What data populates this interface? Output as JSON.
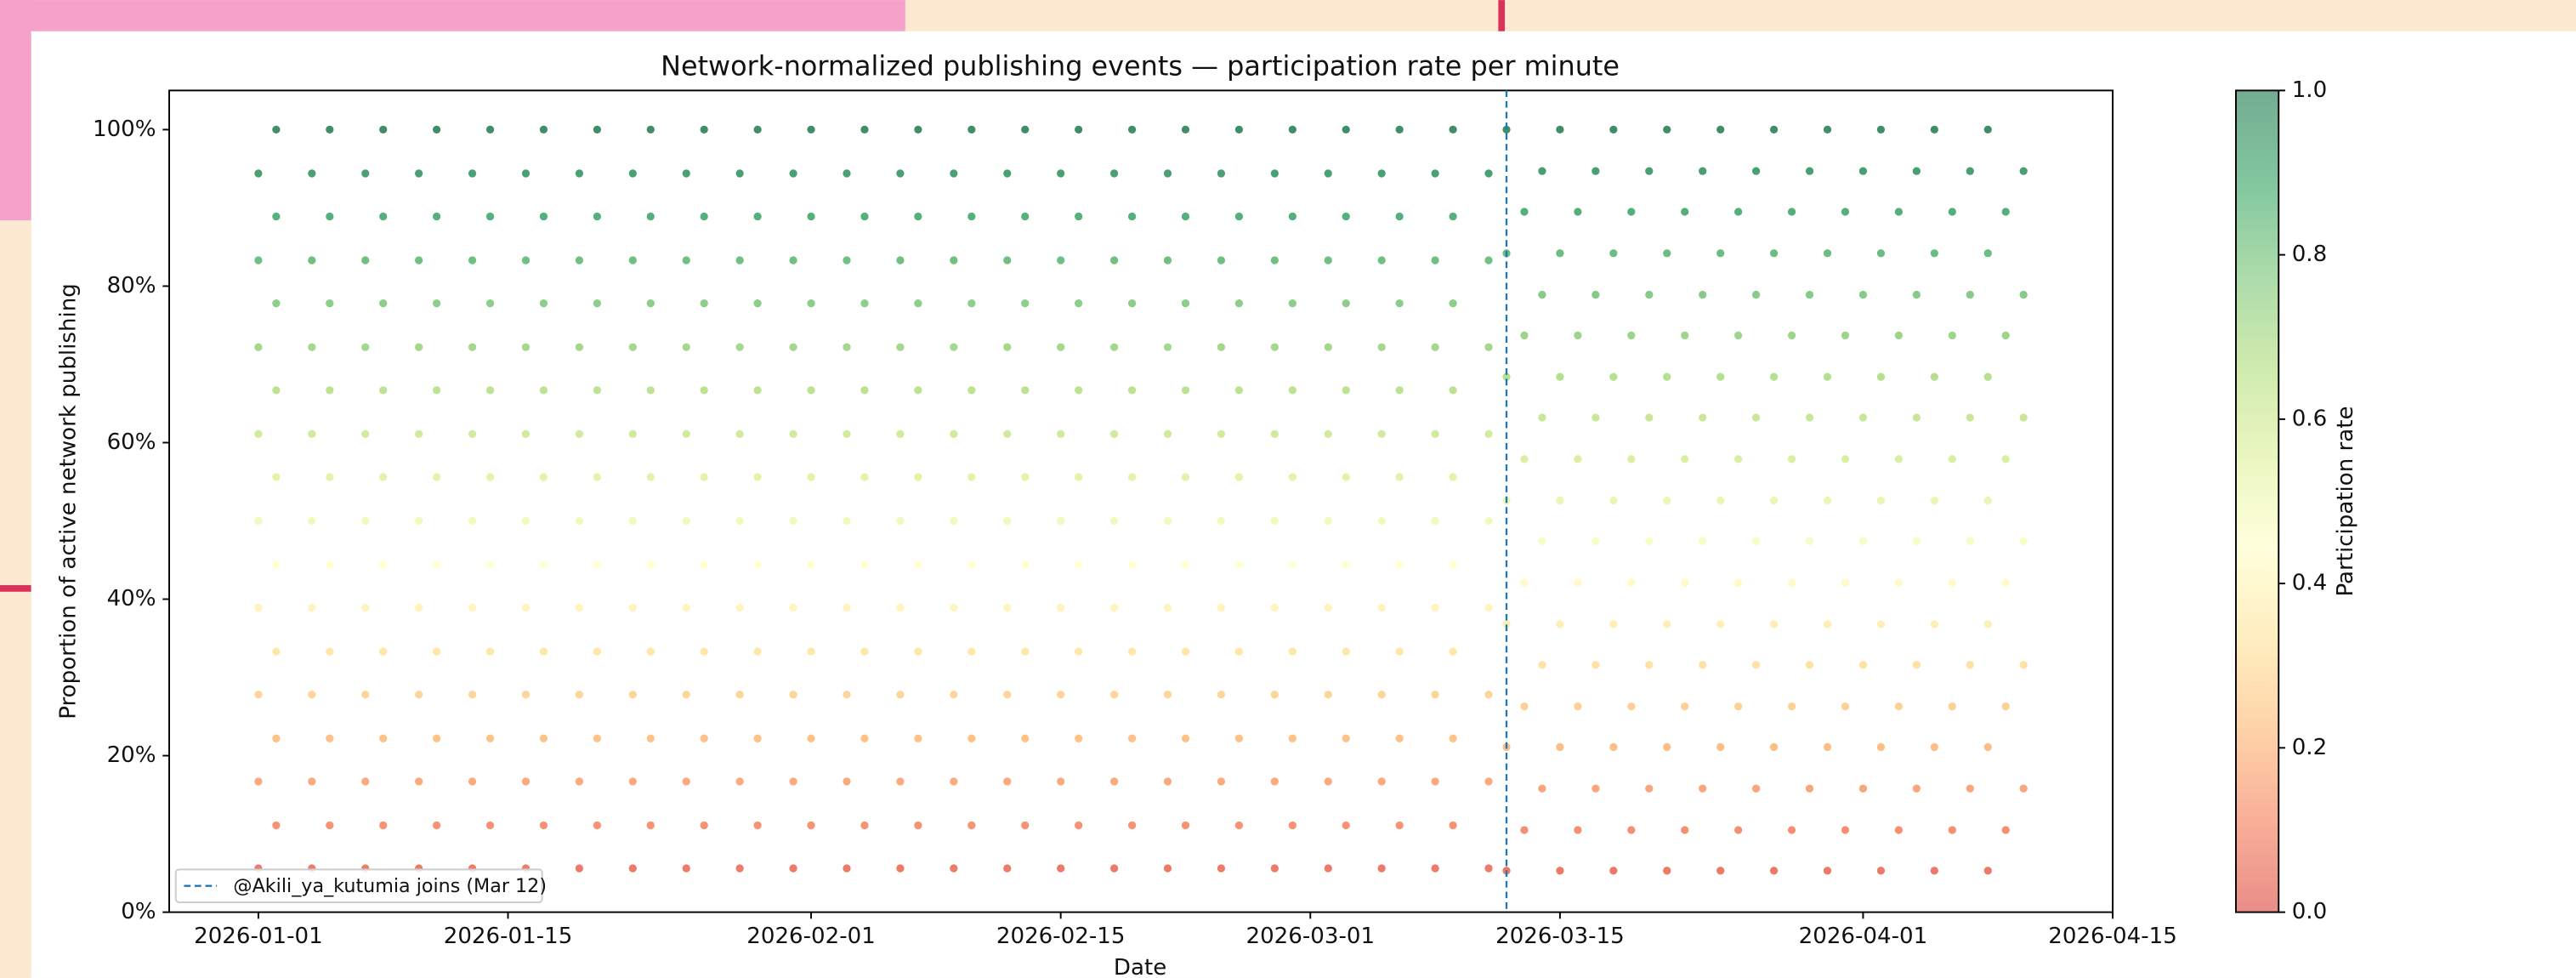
{
  "chart_data": {
    "type": "scatter",
    "title": "Network-normalized publishing events — participation rate per minute",
    "xlabel": "Date",
    "ylabel": "Proportion of active network publishing",
    "xlim": [
      "2025-12-27",
      "2026-04-15"
    ],
    "xticks": [
      "2026-01-01",
      "2026-01-15",
      "2026-02-01",
      "2026-02-15",
      "2026-03-01",
      "2026-03-15",
      "2026-04-01",
      "2026-04-15"
    ],
    "ylim": [
      0,
      1.05
    ],
    "yticks": [
      {
        "value": 0,
        "label": "0%"
      },
      {
        "value": 0.2,
        "label": "20%"
      },
      {
        "value": 0.4,
        "label": "40%"
      },
      {
        "value": 0.6,
        "label": "60%"
      },
      {
        "value": 0.8,
        "label": "80%"
      },
      {
        "value": 1,
        "label": "100%"
      }
    ],
    "colormap": [
      "#d73027",
      "#f46d43",
      "#fdae61",
      "#fee08b",
      "#ffffbf",
      "#d9ef8b",
      "#a6d96a",
      "#66bd63",
      "#1a9850",
      "#006837"
    ],
    "clim": [
      0,
      1
    ],
    "colorbar": {
      "label": "Participation rate",
      "ticks": [
        {
          "value": 0,
          "label": "0.0"
        },
        0.2,
        0.4,
        0.6,
        0.8,
        {
          "value": 1,
          "label": "1.0"
        }
      ]
    },
    "vline": {
      "x": "2026-03-12",
      "label": "@Akili_ya_kutumia joins (Mar 12)",
      "color": "#1f77b4"
    },
    "legend": "lower left",
    "rows": [
      {
        "y": 0.056,
        "x": [
          "2026-01-01",
          "2026-01-04",
          "2026-01-07",
          "2026-01-10",
          "2026-01-13",
          "2026-01-16",
          "2026-01-19",
          "2026-01-22",
          "2026-01-25",
          "2026-01-28",
          "2026-01-31",
          "2026-02-03",
          "2026-02-06",
          "2026-02-09",
          "2026-02-12",
          "2026-02-15",
          "2026-02-18",
          "2026-02-21",
          "2026-02-24",
          "2026-02-27",
          "2026-03-02",
          "2026-03-05",
          "2026-03-08",
          "2026-03-11"
        ]
      },
      {
        "y": 0.111,
        "x": [
          "2026-01-02",
          "2026-01-05",
          "2026-01-08",
          "2026-01-11",
          "2026-01-14",
          "2026-01-17",
          "2026-01-20",
          "2026-01-23",
          "2026-01-26",
          "2026-01-29",
          "2026-02-01",
          "2026-02-04",
          "2026-02-07",
          "2026-02-10",
          "2026-02-13",
          "2026-02-16",
          "2026-02-19",
          "2026-02-22",
          "2026-02-25",
          "2026-02-28",
          "2026-03-03",
          "2026-03-06",
          "2026-03-09"
        ]
      },
      {
        "y": 0.167,
        "x": [
          "2026-01-01",
          "2026-01-04",
          "2026-01-07",
          "2026-01-10",
          "2026-01-13",
          "2026-01-16",
          "2026-01-19",
          "2026-01-22",
          "2026-01-25",
          "2026-01-28",
          "2026-01-31",
          "2026-02-03",
          "2026-02-06",
          "2026-02-09",
          "2026-02-12",
          "2026-02-15",
          "2026-02-18",
          "2026-02-21",
          "2026-02-24",
          "2026-02-27",
          "2026-03-02",
          "2026-03-05",
          "2026-03-08",
          "2026-03-11"
        ]
      },
      {
        "y": 0.222,
        "x": [
          "2026-01-02",
          "2026-01-05",
          "2026-01-08",
          "2026-01-11",
          "2026-01-14",
          "2026-01-17",
          "2026-01-20",
          "2026-01-23",
          "2026-01-26",
          "2026-01-29",
          "2026-02-01",
          "2026-02-04",
          "2026-02-07",
          "2026-02-10",
          "2026-02-13",
          "2026-02-16",
          "2026-02-19",
          "2026-02-22",
          "2026-02-25",
          "2026-02-28",
          "2026-03-03",
          "2026-03-06",
          "2026-03-09"
        ]
      },
      {
        "y": 0.278,
        "x": [
          "2026-01-01",
          "2026-01-04",
          "2026-01-07",
          "2026-01-10",
          "2026-01-13",
          "2026-01-16",
          "2026-01-19",
          "2026-01-22",
          "2026-01-25",
          "2026-01-28",
          "2026-01-31",
          "2026-02-03",
          "2026-02-06",
          "2026-02-09",
          "2026-02-12",
          "2026-02-15",
          "2026-02-18",
          "2026-02-21",
          "2026-02-24",
          "2026-02-27",
          "2026-03-02",
          "2026-03-05",
          "2026-03-08",
          "2026-03-11"
        ]
      },
      {
        "y": 0.333,
        "x": [
          "2026-01-02",
          "2026-01-05",
          "2026-01-08",
          "2026-01-11",
          "2026-01-14",
          "2026-01-17",
          "2026-01-20",
          "2026-01-23",
          "2026-01-26",
          "2026-01-29",
          "2026-02-01",
          "2026-02-04",
          "2026-02-07",
          "2026-02-10",
          "2026-02-13",
          "2026-02-16",
          "2026-02-19",
          "2026-02-22",
          "2026-02-25",
          "2026-02-28",
          "2026-03-03",
          "2026-03-06",
          "2026-03-09"
        ]
      },
      {
        "y": 0.389,
        "x": [
          "2026-01-01",
          "2026-01-04",
          "2026-01-07",
          "2026-01-10",
          "2026-01-13",
          "2026-01-16",
          "2026-01-19",
          "2026-01-22",
          "2026-01-25",
          "2026-01-28",
          "2026-01-31",
          "2026-02-03",
          "2026-02-06",
          "2026-02-09",
          "2026-02-12",
          "2026-02-15",
          "2026-02-18",
          "2026-02-21",
          "2026-02-24",
          "2026-02-27",
          "2026-03-02",
          "2026-03-05",
          "2026-03-08",
          "2026-03-11"
        ]
      },
      {
        "y": 0.444,
        "x": [
          "2026-01-02",
          "2026-01-05",
          "2026-01-08",
          "2026-01-11",
          "2026-01-14",
          "2026-01-17",
          "2026-01-20",
          "2026-01-23",
          "2026-01-26",
          "2026-01-29",
          "2026-02-01",
          "2026-02-04",
          "2026-02-07",
          "2026-02-10",
          "2026-02-13",
          "2026-02-16",
          "2026-02-19",
          "2026-02-22",
          "2026-02-25",
          "2026-02-28",
          "2026-03-03",
          "2026-03-06",
          "2026-03-09"
        ]
      },
      {
        "y": 0.5,
        "x": [
          "2026-01-01",
          "2026-01-04",
          "2026-01-07",
          "2026-01-10",
          "2026-01-13",
          "2026-01-16",
          "2026-01-19",
          "2026-01-22",
          "2026-01-25",
          "2026-01-28",
          "2026-01-31",
          "2026-02-03",
          "2026-02-06",
          "2026-02-09",
          "2026-02-12",
          "2026-02-15",
          "2026-02-18",
          "2026-02-21",
          "2026-02-24",
          "2026-02-27",
          "2026-03-02",
          "2026-03-05",
          "2026-03-08",
          "2026-03-11"
        ]
      },
      {
        "y": 0.556,
        "x": [
          "2026-01-02",
          "2026-01-05",
          "2026-01-08",
          "2026-01-11",
          "2026-01-14",
          "2026-01-17",
          "2026-01-20",
          "2026-01-23",
          "2026-01-26",
          "2026-01-29",
          "2026-02-01",
          "2026-02-04",
          "2026-02-07",
          "2026-02-10",
          "2026-02-13",
          "2026-02-16",
          "2026-02-19",
          "2026-02-22",
          "2026-02-25",
          "2026-02-28",
          "2026-03-03",
          "2026-03-06",
          "2026-03-09"
        ]
      },
      {
        "y": 0.611,
        "x": [
          "2026-01-01",
          "2026-01-04",
          "2026-01-07",
          "2026-01-10",
          "2026-01-13",
          "2026-01-16",
          "2026-01-19",
          "2026-01-22",
          "2026-01-25",
          "2026-01-28",
          "2026-01-31",
          "2026-02-03",
          "2026-02-06",
          "2026-02-09",
          "2026-02-12",
          "2026-02-15",
          "2026-02-18",
          "2026-02-21",
          "2026-02-24",
          "2026-02-27",
          "2026-03-02",
          "2026-03-05",
          "2026-03-08",
          "2026-03-11"
        ]
      },
      {
        "y": 0.667,
        "x": [
          "2026-01-02",
          "2026-01-05",
          "2026-01-08",
          "2026-01-11",
          "2026-01-14",
          "2026-01-17",
          "2026-01-20",
          "2026-01-23",
          "2026-01-26",
          "2026-01-29",
          "2026-02-01",
          "2026-02-04",
          "2026-02-07",
          "2026-02-10",
          "2026-02-13",
          "2026-02-16",
          "2026-02-19",
          "2026-02-22",
          "2026-02-25",
          "2026-02-28",
          "2026-03-03",
          "2026-03-06",
          "2026-03-09"
        ]
      },
      {
        "y": 0.722,
        "x": [
          "2026-01-01",
          "2026-01-04",
          "2026-01-07",
          "2026-01-10",
          "2026-01-13",
          "2026-01-16",
          "2026-01-19",
          "2026-01-22",
          "2026-01-25",
          "2026-01-28",
          "2026-01-31",
          "2026-02-03",
          "2026-02-06",
          "2026-02-09",
          "2026-02-12",
          "2026-02-15",
          "2026-02-18",
          "2026-02-21",
          "2026-02-24",
          "2026-02-27",
          "2026-03-02",
          "2026-03-05",
          "2026-03-08",
          "2026-03-11"
        ]
      },
      {
        "y": 0.778,
        "x": [
          "2026-01-02",
          "2026-01-05",
          "2026-01-08",
          "2026-01-11",
          "2026-01-14",
          "2026-01-17",
          "2026-01-20",
          "2026-01-23",
          "2026-01-26",
          "2026-01-29",
          "2026-02-01",
          "2026-02-04",
          "2026-02-07",
          "2026-02-10",
          "2026-02-13",
          "2026-02-16",
          "2026-02-19",
          "2026-02-22",
          "2026-02-25",
          "2026-02-28",
          "2026-03-03",
          "2026-03-06",
          "2026-03-09"
        ]
      },
      {
        "y": 0.833,
        "x": [
          "2026-01-01",
          "2026-01-04",
          "2026-01-07",
          "2026-01-10",
          "2026-01-13",
          "2026-01-16",
          "2026-01-19",
          "2026-01-22",
          "2026-01-25",
          "2026-01-28",
          "2026-01-31",
          "2026-02-03",
          "2026-02-06",
          "2026-02-09",
          "2026-02-12",
          "2026-02-15",
          "2026-02-18",
          "2026-02-21",
          "2026-02-24",
          "2026-02-27",
          "2026-03-02",
          "2026-03-05",
          "2026-03-08",
          "2026-03-11"
        ]
      },
      {
        "y": 0.889,
        "x": [
          "2026-01-02",
          "2026-01-05",
          "2026-01-08",
          "2026-01-11",
          "2026-01-14",
          "2026-01-17",
          "2026-01-20",
          "2026-01-23",
          "2026-01-26",
          "2026-01-29",
          "2026-02-01",
          "2026-02-04",
          "2026-02-07",
          "2026-02-10",
          "2026-02-13",
          "2026-02-16",
          "2026-02-19",
          "2026-02-22",
          "2026-02-25",
          "2026-02-28",
          "2026-03-03",
          "2026-03-06",
          "2026-03-09"
        ]
      },
      {
        "y": 0.944,
        "x": [
          "2026-01-01",
          "2026-01-04",
          "2026-01-07",
          "2026-01-10",
          "2026-01-13",
          "2026-01-16",
          "2026-01-19",
          "2026-01-22",
          "2026-01-25",
          "2026-01-28",
          "2026-01-31",
          "2026-02-03",
          "2026-02-06",
          "2026-02-09",
          "2026-02-12",
          "2026-02-15",
          "2026-02-18",
          "2026-02-21",
          "2026-02-24",
          "2026-02-27",
          "2026-03-02",
          "2026-03-05",
          "2026-03-08",
          "2026-03-11"
        ]
      },
      {
        "y": 1,
        "x": [
          "2026-01-02",
          "2026-01-05",
          "2026-01-08",
          "2026-01-11",
          "2026-01-14",
          "2026-01-17",
          "2026-01-20",
          "2026-01-23",
          "2026-01-26",
          "2026-01-29",
          "2026-02-01",
          "2026-02-04",
          "2026-02-07",
          "2026-02-10",
          "2026-02-13",
          "2026-02-16",
          "2026-02-19",
          "2026-02-22",
          "2026-02-25",
          "2026-02-28",
          "2026-03-03",
          "2026-03-06",
          "2026-03-09"
        ]
      },
      {
        "y": 0.053,
        "x": [
          "2026-03-12",
          "2026-03-15",
          "2026-03-18",
          "2026-03-21",
          "2026-03-24",
          "2026-03-27",
          "2026-03-30",
          "2026-04-02",
          "2026-04-05",
          "2026-04-08"
        ]
      },
      {
        "y": 0.105,
        "x": [
          "2026-03-13",
          "2026-03-16",
          "2026-03-19",
          "2026-03-22",
          "2026-03-25",
          "2026-03-28",
          "2026-03-31",
          "2026-04-03",
          "2026-04-06",
          "2026-04-09"
        ]
      },
      {
        "y": 0.158,
        "x": [
          "2026-03-14",
          "2026-03-17",
          "2026-03-20",
          "2026-03-23",
          "2026-03-26",
          "2026-03-29",
          "2026-04-01",
          "2026-04-04",
          "2026-04-07",
          "2026-04-10"
        ]
      },
      {
        "y": 0.211,
        "x": [
          "2026-03-12",
          "2026-03-15",
          "2026-03-18",
          "2026-03-21",
          "2026-03-24",
          "2026-03-27",
          "2026-03-30",
          "2026-04-02",
          "2026-04-05",
          "2026-04-08"
        ]
      },
      {
        "y": 0.263,
        "x": [
          "2026-03-13",
          "2026-03-16",
          "2026-03-19",
          "2026-03-22",
          "2026-03-25",
          "2026-03-28",
          "2026-03-31",
          "2026-04-03",
          "2026-04-06",
          "2026-04-09"
        ]
      },
      {
        "y": 0.316,
        "x": [
          "2026-03-14",
          "2026-03-17",
          "2026-03-20",
          "2026-03-23",
          "2026-03-26",
          "2026-03-29",
          "2026-04-01",
          "2026-04-04",
          "2026-04-07",
          "2026-04-10"
        ]
      },
      {
        "y": 0.368,
        "x": [
          "2026-03-12",
          "2026-03-15",
          "2026-03-18",
          "2026-03-21",
          "2026-03-24",
          "2026-03-27",
          "2026-03-30",
          "2026-04-02",
          "2026-04-05",
          "2026-04-08"
        ]
      },
      {
        "y": 0.421,
        "x": [
          "2026-03-13",
          "2026-03-16",
          "2026-03-19",
          "2026-03-22",
          "2026-03-25",
          "2026-03-28",
          "2026-03-31",
          "2026-04-03",
          "2026-04-06",
          "2026-04-09"
        ]
      },
      {
        "y": 0.474,
        "x": [
          "2026-03-14",
          "2026-03-17",
          "2026-03-20",
          "2026-03-23",
          "2026-03-26",
          "2026-03-29",
          "2026-04-01",
          "2026-04-04",
          "2026-04-07",
          "2026-04-10"
        ]
      },
      {
        "y": 0.526,
        "x": [
          "2026-03-12",
          "2026-03-15",
          "2026-03-18",
          "2026-03-21",
          "2026-03-24",
          "2026-03-27",
          "2026-03-30",
          "2026-04-02",
          "2026-04-05",
          "2026-04-08"
        ]
      },
      {
        "y": 0.579,
        "x": [
          "2026-03-13",
          "2026-03-16",
          "2026-03-19",
          "2026-03-22",
          "2026-03-25",
          "2026-03-28",
          "2026-03-31",
          "2026-04-03",
          "2026-04-06",
          "2026-04-09"
        ]
      },
      {
        "y": 0.632,
        "x": [
          "2026-03-14",
          "2026-03-17",
          "2026-03-20",
          "2026-03-23",
          "2026-03-26",
          "2026-03-29",
          "2026-04-01",
          "2026-04-04",
          "2026-04-07",
          "2026-04-10"
        ]
      },
      {
        "y": 0.684,
        "x": [
          "2026-03-12",
          "2026-03-15",
          "2026-03-18",
          "2026-03-21",
          "2026-03-24",
          "2026-03-27",
          "2026-03-30",
          "2026-04-02",
          "2026-04-05",
          "2026-04-08"
        ]
      },
      {
        "y": 0.737,
        "x": [
          "2026-03-13",
          "2026-03-16",
          "2026-03-19",
          "2026-03-22",
          "2026-03-25",
          "2026-03-28",
          "2026-03-31",
          "2026-04-03",
          "2026-04-06",
          "2026-04-09"
        ]
      },
      {
        "y": 0.789,
        "x": [
          "2026-03-14",
          "2026-03-17",
          "2026-03-20",
          "2026-03-23",
          "2026-03-26",
          "2026-03-29",
          "2026-04-01",
          "2026-04-04",
          "2026-04-07",
          "2026-04-10"
        ]
      },
      {
        "y": 0.842,
        "x": [
          "2026-03-12",
          "2026-03-15",
          "2026-03-18",
          "2026-03-21",
          "2026-03-24",
          "2026-03-27",
          "2026-03-30",
          "2026-04-02",
          "2026-04-05",
          "2026-04-08"
        ]
      },
      {
        "y": 0.895,
        "x": [
          "2026-03-13",
          "2026-03-16",
          "2026-03-19",
          "2026-03-22",
          "2026-03-25",
          "2026-03-28",
          "2026-03-31",
          "2026-04-03",
          "2026-04-06",
          "2026-04-09"
        ]
      },
      {
        "y": 0.947,
        "x": [
          "2026-03-14",
          "2026-03-17",
          "2026-03-20",
          "2026-03-23",
          "2026-03-26",
          "2026-03-29",
          "2026-04-01",
          "2026-04-04",
          "2026-04-07",
          "2026-04-10"
        ]
      },
      {
        "y": 1,
        "x": [
          "2026-03-12",
          "2026-03-15",
          "2026-03-18",
          "2026-03-21",
          "2026-03-24",
          "2026-03-27",
          "2026-03-30",
          "2026-04-02",
          "2026-04-05",
          "2026-04-08"
        ]
      }
    ]
  }
}
